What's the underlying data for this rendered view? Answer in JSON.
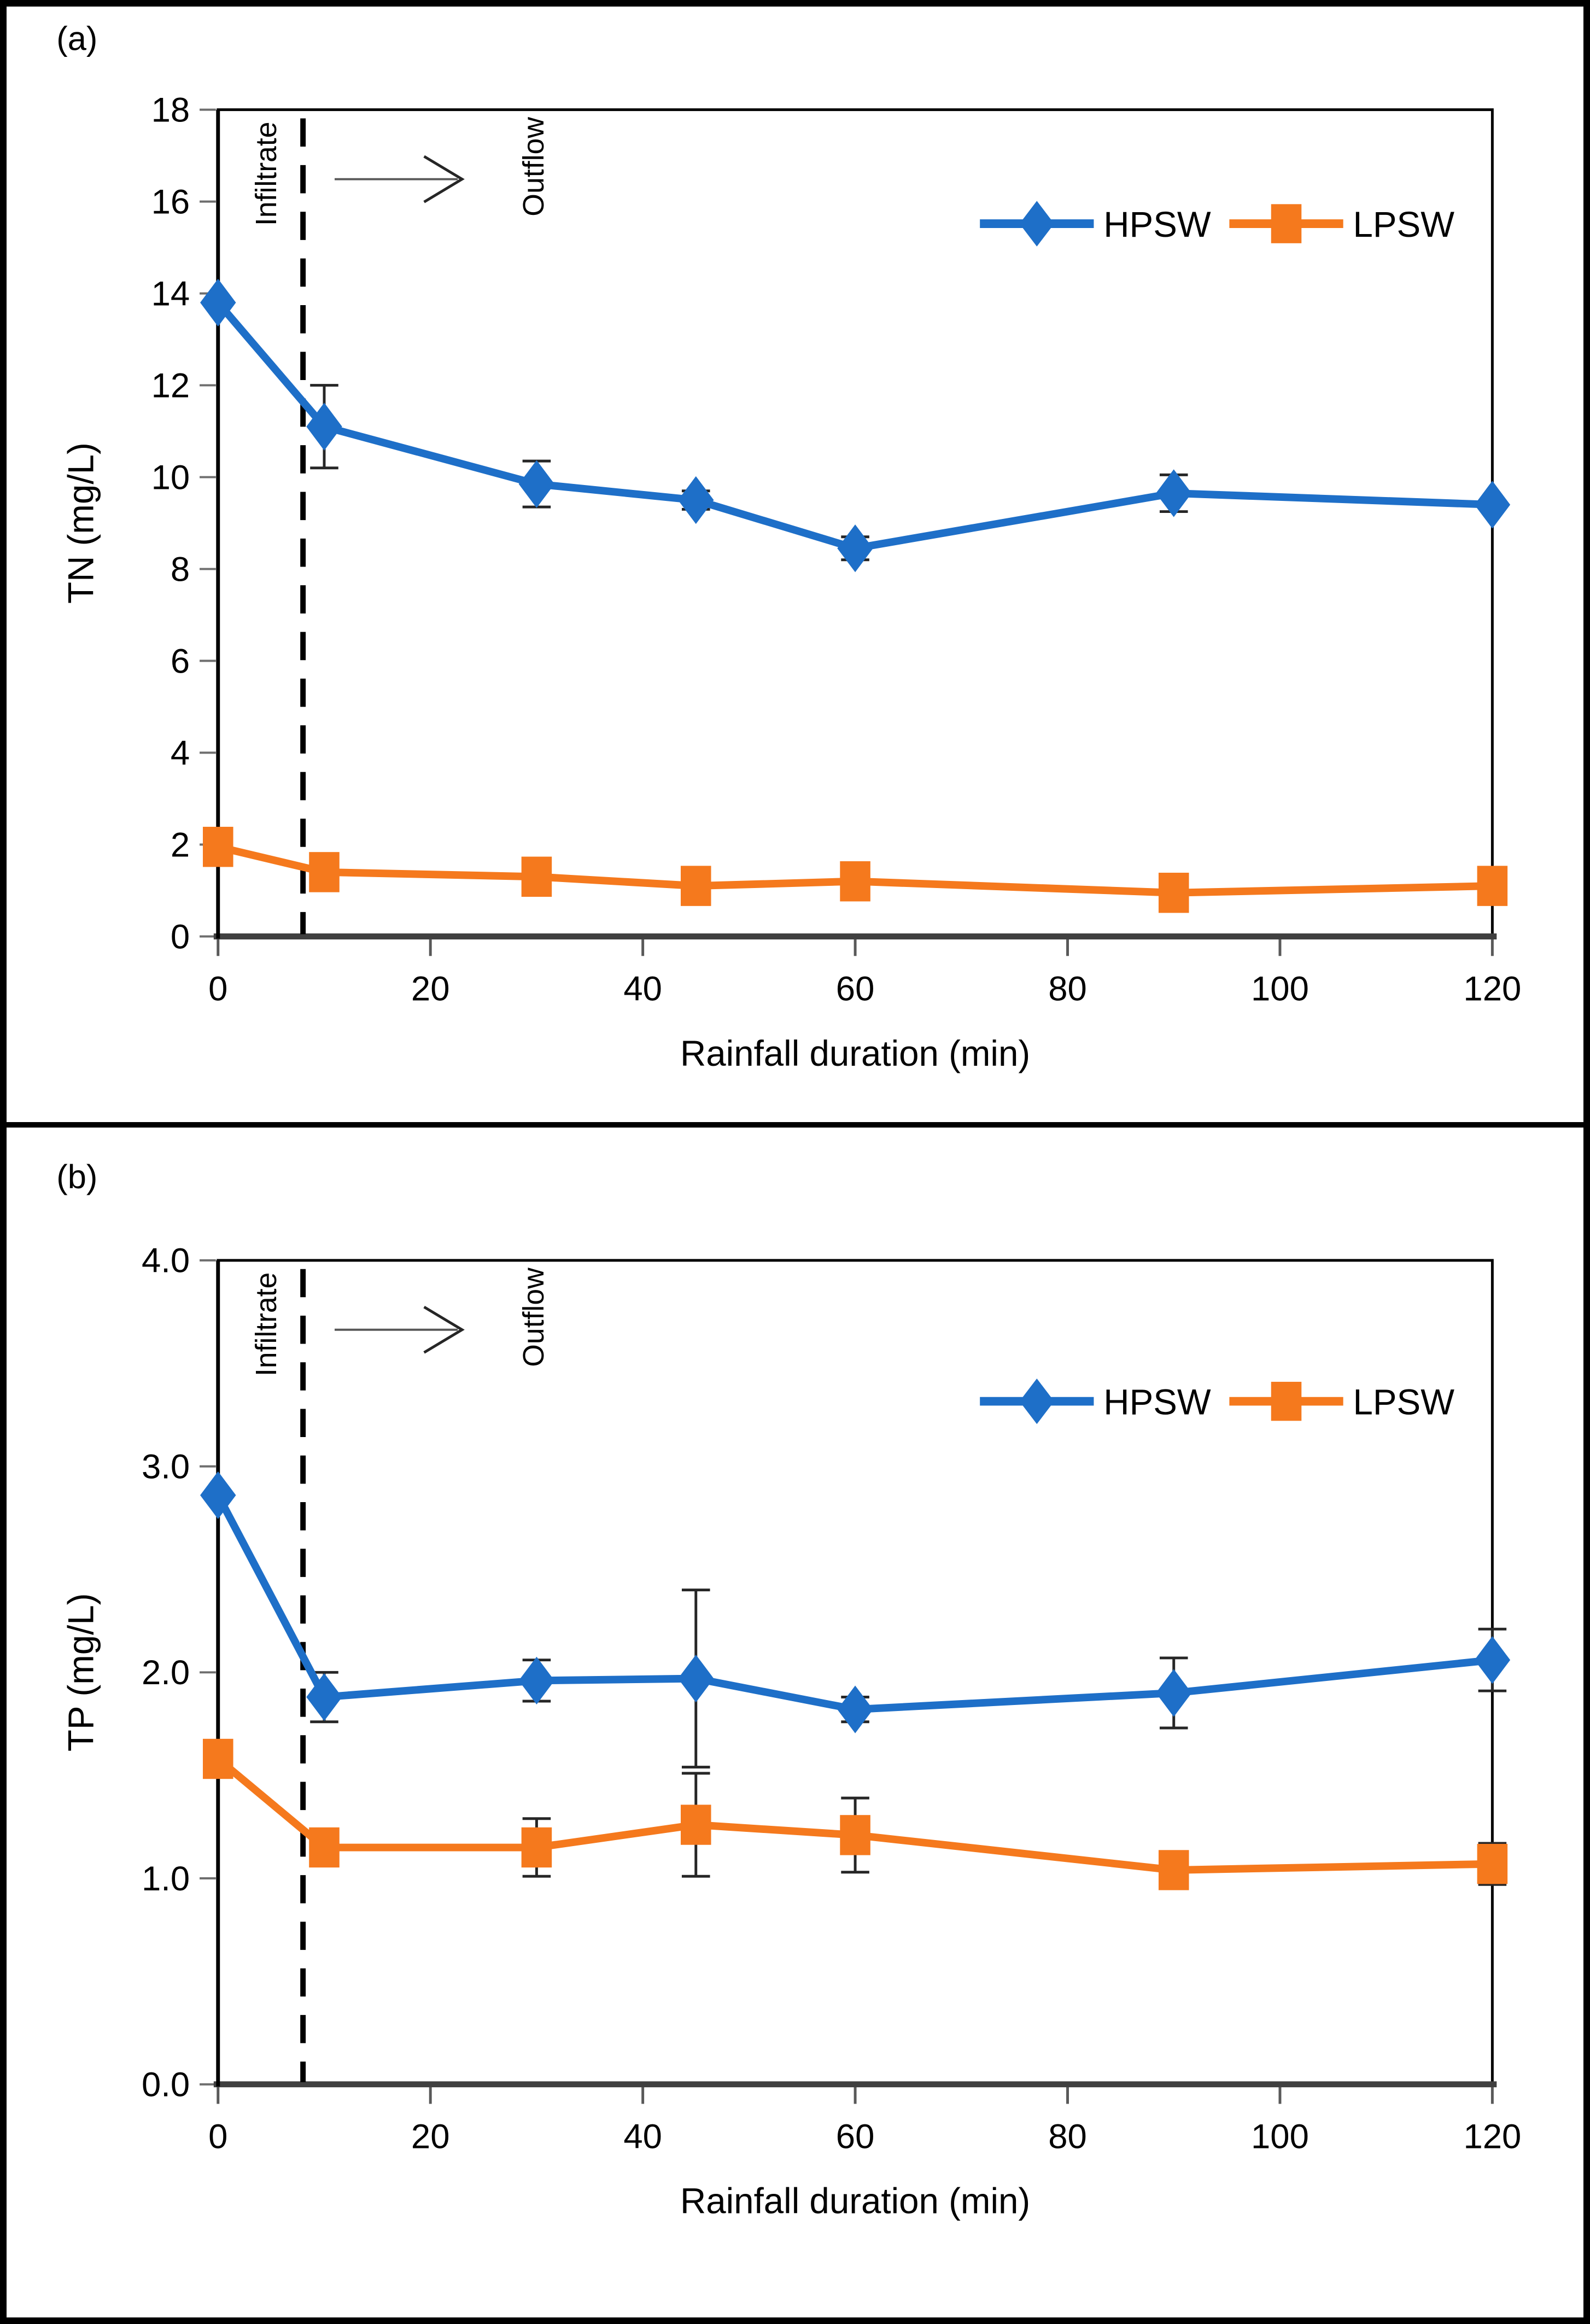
{
  "figure": {
    "description": "Two stacked line charts of nutrient concentration versus rainfall duration",
    "panels": [
      {
        "panel_label": "(a)",
        "ylabel": "TN  (mg/L)"
      },
      {
        "panel_label": "(b)",
        "ylabel": "TP (mg/L)"
      }
    ]
  },
  "colors": {
    "hpsw": "#1E6FC8",
    "lpsw": "#F5791D",
    "error_bar": "#262626",
    "dashed_line": "#000000",
    "axis_bottom": "#404040",
    "axis_left": "#000000",
    "tick": "#6e6e6e",
    "arrow": "#595959",
    "text": "#000000"
  },
  "chart_data": [
    {
      "type": "line",
      "panel_label": "(a)",
      "title": "",
      "xlabel": "Rainfall duration (min)",
      "ylabel": "TN  (mg/L)",
      "x": [
        0,
        10,
        30,
        45,
        60,
        90,
        120
      ],
      "xticks": [
        0,
        20,
        40,
        60,
        80,
        100,
        120
      ],
      "xtick_labels": [
        "0",
        "20",
        "40",
        "60",
        "80",
        "100",
        "120"
      ],
      "ylim": [
        0,
        18
      ],
      "yticks": [
        0,
        2,
        4,
        6,
        8,
        10,
        12,
        14,
        16,
        18
      ],
      "ytick_labels": [
        "0",
        "2",
        "4",
        "6",
        "8",
        "10",
        "12",
        "14",
        "16",
        "18"
      ],
      "grid": false,
      "legend_position": "top-right",
      "series": [
        {
          "name": "HPSW",
          "marker": "diamond",
          "color": "#1E6FC8",
          "values": [
            13.8,
            11.1,
            9.85,
            9.5,
            8.45,
            9.65,
            9.4
          ],
          "errors": [
            0,
            0.9,
            0.5,
            0.2,
            0.25,
            0.4,
            0
          ]
        },
        {
          "name": "LPSW",
          "marker": "square",
          "color": "#F5791D",
          "values": [
            1.95,
            1.4,
            1.3,
            1.1,
            1.2,
            0.95,
            1.1
          ],
          "errors": [
            0,
            0,
            0,
            0,
            0,
            0,
            0
          ]
        }
      ],
      "annotations": {
        "left_of_dash": "Infiltrate",
        "right_of_dash": "Outflow",
        "dash_x": 8
      }
    },
    {
      "type": "line",
      "panel_label": "(b)",
      "title": "",
      "xlabel": "Rainfall duration (min)",
      "ylabel": "TP (mg/L)",
      "x": [
        0,
        10,
        30,
        45,
        60,
        90,
        120
      ],
      "xticks": [
        0,
        20,
        40,
        60,
        80,
        100,
        120
      ],
      "xtick_labels": [
        "0",
        "20",
        "40",
        "60",
        "80",
        "100",
        "120"
      ],
      "ylim": [
        0,
        4
      ],
      "yticks": [
        0,
        1,
        2,
        3,
        4
      ],
      "ytick_labels": [
        "0.0",
        "1.0",
        "2.0",
        "3.0",
        "4.0"
      ],
      "grid": false,
      "legend_position": "top-right",
      "series": [
        {
          "name": "HPSW",
          "marker": "diamond",
          "color": "#1E6FC8",
          "values": [
            2.86,
            1.88,
            1.96,
            1.97,
            1.82,
            1.9,
            2.06
          ],
          "errors": [
            0,
            0.12,
            0.1,
            0.43,
            0.06,
            0.17,
            0.15
          ]
        },
        {
          "name": "LPSW",
          "marker": "square",
          "color": "#F5791D",
          "values": [
            1.58,
            1.15,
            1.15,
            1.26,
            1.21,
            1.04,
            1.07
          ],
          "errors": [
            0,
            0,
            0.14,
            0.25,
            0.18,
            0.08,
            0.1
          ]
        }
      ],
      "annotations": {
        "left_of_dash": "Infiltrate",
        "right_of_dash": "Outflow",
        "dash_x": 8
      }
    }
  ]
}
